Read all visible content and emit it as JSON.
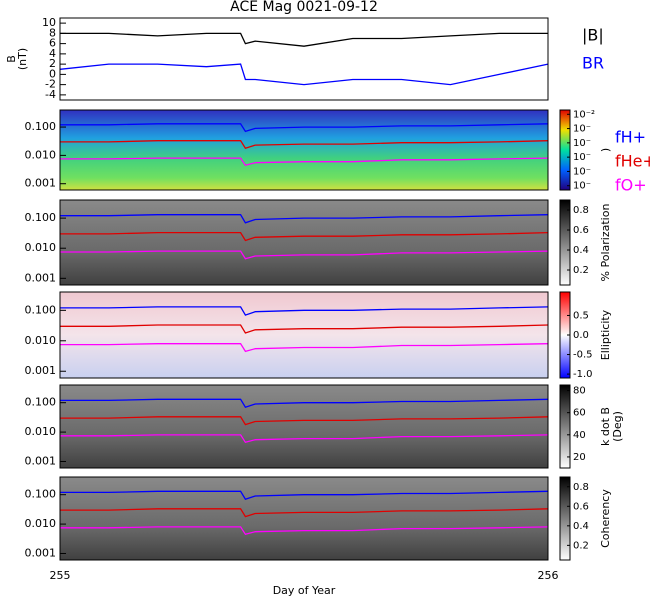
{
  "chart_data": [
    {
      "type": "line",
      "title": "ACE Mag 0021-09-12",
      "ylabel": [
        "B",
        "(nT)"
      ],
      "legend": true,
      "ylim": [
        -5,
        11
      ],
      "yticks": [
        -4,
        -2,
        0,
        2,
        4,
        6,
        8,
        10
      ],
      "x": [
        255,
        255.1,
        255.2,
        255.3,
        255.37,
        255.38,
        255.4,
        255.5,
        255.6,
        255.7,
        255.8,
        255.9,
        256
      ],
      "series": [
        {
          "name": "|B|",
          "color": "#000000",
          "values": [
            8,
            8,
            7.5,
            8,
            8,
            6,
            6.5,
            5.5,
            7,
            7,
            7.5,
            8,
            8
          ]
        },
        {
          "name": "BR",
          "color": "#0000ff",
          "values": [
            1,
            2,
            2,
            1.5,
            2,
            -1,
            -1,
            -2,
            -1,
            -1,
            -2,
            0,
            2
          ]
        }
      ]
    },
    {
      "type": "spectrogram",
      "log_y": true,
      "legend": true,
      "ylim": [
        0.0006,
        0.4
      ],
      "yticks": [
        {
          "value": 0.001,
          "label": "0.001"
        },
        {
          "value": 0.01,
          "label": "0.010"
        },
        {
          "value": 0.1,
          "label": "0.100"
        }
      ],
      "colorbar": {
        "label": [
          ")"
        ],
        "lim": [
          -7.3,
          -1.7
        ],
        "ticks": [
          {
            "value": -2,
            "label": "10⁻²"
          },
          {
            "value": -3,
            "label": "10⁻"
          },
          {
            "value": -4,
            "label": "10⁻"
          },
          {
            "value": -5,
            "label": "10⁻"
          },
          {
            "value": -6,
            "label": "10⁻"
          },
          {
            "value": -7,
            "label": "10⁻"
          }
        ]
      },
      "x": [
        255,
        255.1,
        255.2,
        255.3,
        255.37,
        255.38,
        255.4,
        255.5,
        255.6,
        255.7,
        255.8,
        255.9,
        256
      ],
      "series": [
        {
          "name": "fH+",
          "color": "#0000ff",
          "values": [
            0.12,
            0.12,
            0.13,
            0.13,
            0.13,
            0.07,
            0.09,
            0.1,
            0.1,
            0.11,
            0.11,
            0.12,
            0.13
          ]
        },
        {
          "name": "fHe+",
          "color": "#e00000",
          "values": [
            0.03,
            0.03,
            0.033,
            0.033,
            0.033,
            0.018,
            0.023,
            0.025,
            0.025,
            0.028,
            0.028,
            0.03,
            0.033
          ]
        },
        {
          "name": "fO+",
          "color": "#ff00ff",
          "values": [
            0.0075,
            0.0075,
            0.008,
            0.008,
            0.008,
            0.0045,
            0.0055,
            0.006,
            0.006,
            0.007,
            0.007,
            0.0075,
            0.008
          ]
        }
      ]
    },
    {
      "type": "spectrogram",
      "log_y": true,
      "ylim": [
        0.0006,
        0.4
      ],
      "yticks": [
        {
          "value": 0.001,
          "label": "0.001"
        },
        {
          "value": 0.01,
          "label": "0.010"
        },
        {
          "value": 0.1,
          "label": "0.100"
        }
      ],
      "colorbar": {
        "label": [
          "% Polarization"
        ],
        "lim": [
          0.05,
          0.9
        ],
        "ticks": [
          0.2,
          0.4,
          0.6,
          0.8
        ]
      },
      "x": [
        255,
        255.1,
        255.2,
        255.3,
        255.37,
        255.38,
        255.4,
        255.5,
        255.6,
        255.7,
        255.8,
        255.9,
        256
      ],
      "series": [
        {
          "color": "#0000ff",
          "values": [
            0.12,
            0.12,
            0.13,
            0.13,
            0.13,
            0.07,
            0.09,
            0.1,
            0.1,
            0.11,
            0.11,
            0.12,
            0.13
          ]
        },
        {
          "color": "#e00000",
          "values": [
            0.03,
            0.03,
            0.033,
            0.033,
            0.033,
            0.018,
            0.023,
            0.025,
            0.025,
            0.028,
            0.028,
            0.03,
            0.033
          ]
        },
        {
          "color": "#ff00ff",
          "values": [
            0.0075,
            0.0075,
            0.008,
            0.008,
            0.008,
            0.0045,
            0.0055,
            0.006,
            0.006,
            0.007,
            0.007,
            0.0075,
            0.008
          ]
        }
      ]
    },
    {
      "type": "spectrogram",
      "log_y": true,
      "ylim": [
        0.0006,
        0.4
      ],
      "yticks": [
        {
          "value": 0.001,
          "label": "0.001"
        },
        {
          "value": 0.01,
          "label": "0.010"
        },
        {
          "value": 0.1,
          "label": "0.100"
        }
      ],
      "colorbar": {
        "label": [
          "Ellipticity"
        ],
        "lim": [
          -1.1,
          1.1
        ],
        "ticks": [
          0.5,
          {
            "value": 0,
            "label": "0.0"
          },
          -0.5,
          {
            "value": -1,
            "label": "-1.0"
          }
        ]
      },
      "x": [
        255,
        255.1,
        255.2,
        255.3,
        255.37,
        255.38,
        255.4,
        255.5,
        255.6,
        255.7,
        255.8,
        255.9,
        256
      ],
      "series": [
        {
          "color": "#0000ff",
          "values": [
            0.12,
            0.12,
            0.13,
            0.13,
            0.13,
            0.07,
            0.09,
            0.1,
            0.1,
            0.11,
            0.11,
            0.12,
            0.13
          ]
        },
        {
          "color": "#e00000",
          "values": [
            0.03,
            0.03,
            0.033,
            0.033,
            0.033,
            0.018,
            0.023,
            0.025,
            0.025,
            0.028,
            0.028,
            0.03,
            0.033
          ]
        },
        {
          "color": "#ff00ff",
          "values": [
            0.0075,
            0.0075,
            0.008,
            0.008,
            0.008,
            0.0045,
            0.0055,
            0.006,
            0.006,
            0.007,
            0.007,
            0.0075,
            0.008
          ]
        }
      ]
    },
    {
      "type": "spectrogram",
      "log_y": true,
      "ylim": [
        0.0006,
        0.4
      ],
      "yticks": [
        {
          "value": 0.001,
          "label": "0.001"
        },
        {
          "value": 0.01,
          "label": "0.010"
        },
        {
          "value": 0.1,
          "label": "0.100"
        }
      ],
      "colorbar": {
        "label": [
          "k dot B",
          "(Deg)"
        ],
        "lim": [
          10,
          85
        ],
        "ticks": [
          20,
          40,
          60,
          80
        ]
      },
      "x": [
        255,
        255.1,
        255.2,
        255.3,
        255.37,
        255.38,
        255.4,
        255.5,
        255.6,
        255.7,
        255.8,
        255.9,
        256
      ],
      "series": [
        {
          "color": "#0000ff",
          "values": [
            0.12,
            0.12,
            0.13,
            0.13,
            0.13,
            0.07,
            0.09,
            0.1,
            0.1,
            0.11,
            0.11,
            0.12,
            0.13
          ]
        },
        {
          "color": "#e00000",
          "values": [
            0.03,
            0.03,
            0.033,
            0.033,
            0.033,
            0.018,
            0.023,
            0.025,
            0.025,
            0.028,
            0.028,
            0.03,
            0.033
          ]
        },
        {
          "color": "#ff00ff",
          "values": [
            0.0075,
            0.0075,
            0.008,
            0.008,
            0.008,
            0.0045,
            0.0055,
            0.006,
            0.006,
            0.007,
            0.007,
            0.0075,
            0.008
          ]
        }
      ]
    },
    {
      "type": "spectrogram",
      "log_y": true,
      "ylim": [
        0.0006,
        0.4
      ],
      "yticks": [
        {
          "value": 0.001,
          "label": "0.001"
        },
        {
          "value": 0.01,
          "label": "0.010"
        },
        {
          "value": 0.1,
          "label": "0.100"
        }
      ],
      "colorbar": {
        "label": [
          "Coherency"
        ],
        "lim": [
          0.05,
          0.9
        ],
        "ticks": [
          0.2,
          0.4,
          0.6,
          0.8
        ]
      },
      "xlim": [
        255,
        256
      ],
      "xticks": [
        255,
        256
      ],
      "xlabel": "Day of Year",
      "x": [
        255,
        255.1,
        255.2,
        255.3,
        255.37,
        255.38,
        255.4,
        255.5,
        255.6,
        255.7,
        255.8,
        255.9,
        256
      ],
      "series": [
        {
          "color": "#0000ff",
          "values": [
            0.12,
            0.12,
            0.13,
            0.13,
            0.13,
            0.07,
            0.09,
            0.1,
            0.1,
            0.11,
            0.11,
            0.12,
            0.13
          ]
        },
        {
          "color": "#e00000",
          "values": [
            0.03,
            0.03,
            0.033,
            0.033,
            0.033,
            0.018,
            0.023,
            0.025,
            0.025,
            0.028,
            0.028,
            0.03,
            0.033
          ]
        },
        {
          "color": "#ff00ff",
          "values": [
            0.0075,
            0.0075,
            0.008,
            0.008,
            0.008,
            0.0045,
            0.0055,
            0.006,
            0.006,
            0.007,
            0.007,
            0.0075,
            0.008
          ]
        }
      ]
    }
  ]
}
